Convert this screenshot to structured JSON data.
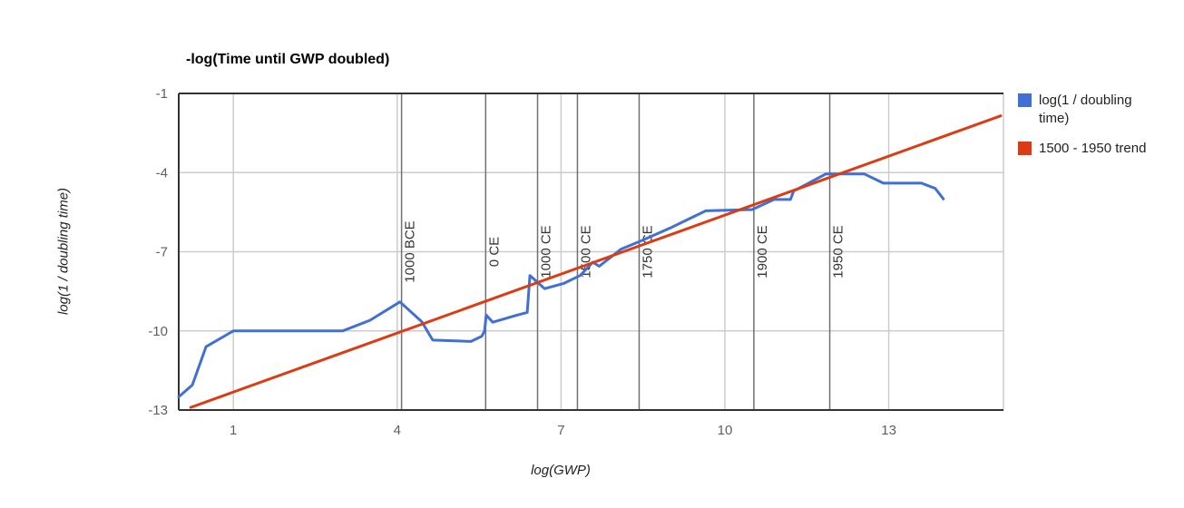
{
  "chart_data": {
    "type": "line",
    "title": "-log(Time until GWP doubled)",
    "xlabel": "log(GWP)",
    "ylabel": "log(1 / doubling time)",
    "xlim": [
      0,
      15.1
    ],
    "ylim": [
      -13,
      -1
    ],
    "x_ticks": [
      1,
      4,
      7,
      10,
      13
    ],
    "y_ticks": [
      -1,
      -4,
      -7,
      -10,
      -13
    ],
    "grid": true,
    "legend_position": "right",
    "colors": {
      "axis": "#333333",
      "gridline": "#cccccc",
      "marker_line": "#707070",
      "tick_label": "#5f5f5f",
      "marker_label": "#333333"
    },
    "year_markers": [
      {
        "label": "1000 BCE",
        "x": 4.08
      },
      {
        "label": "0 CE",
        "x": 5.62
      },
      {
        "label": "1000 CE",
        "x": 6.57
      },
      {
        "label": "1500 CE",
        "x": 7.3
      },
      {
        "label": "1750 CE",
        "x": 8.43
      },
      {
        "label": "1900 CE",
        "x": 10.53
      },
      {
        "label": "1950 CE",
        "x": 11.92
      }
    ],
    "series": [
      {
        "name": "log(1 / doubling time)",
        "color": "#4070d4",
        "points": [
          [
            0.0,
            -12.5
          ],
          [
            0.25,
            -12.05
          ],
          [
            0.5,
            -10.6
          ],
          [
            1.0,
            -10.0
          ],
          [
            3.0,
            -10.0
          ],
          [
            3.5,
            -9.6
          ],
          [
            4.05,
            -8.9
          ],
          [
            4.45,
            -9.65
          ],
          [
            4.65,
            -10.35
          ],
          [
            5.35,
            -10.4
          ],
          [
            5.55,
            -10.2
          ],
          [
            5.6,
            -10.0
          ],
          [
            5.63,
            -9.4
          ],
          [
            5.75,
            -9.67
          ],
          [
            6.2,
            -9.4
          ],
          [
            6.38,
            -9.3
          ],
          [
            6.43,
            -7.9
          ],
          [
            6.7,
            -8.4
          ],
          [
            7.05,
            -8.2
          ],
          [
            7.35,
            -7.9
          ],
          [
            7.58,
            -7.4
          ],
          [
            7.7,
            -7.55
          ],
          [
            8.1,
            -6.9
          ],
          [
            8.45,
            -6.6
          ],
          [
            9.0,
            -6.1
          ],
          [
            9.65,
            -5.45
          ],
          [
            10.5,
            -5.4
          ],
          [
            10.9,
            -5.02
          ],
          [
            11.2,
            -5.02
          ],
          [
            11.26,
            -4.7
          ],
          [
            11.85,
            -4.05
          ],
          [
            12.55,
            -4.05
          ],
          [
            12.9,
            -4.4
          ],
          [
            13.6,
            -4.4
          ],
          [
            13.85,
            -4.6
          ],
          [
            14.0,
            -5.0
          ]
        ]
      },
      {
        "name": "1500 - 1950 trend",
        "color": "#dc3c13",
        "points": [
          [
            0.22,
            -12.9
          ],
          [
            15.05,
            -1.85
          ]
        ]
      }
    ]
  }
}
